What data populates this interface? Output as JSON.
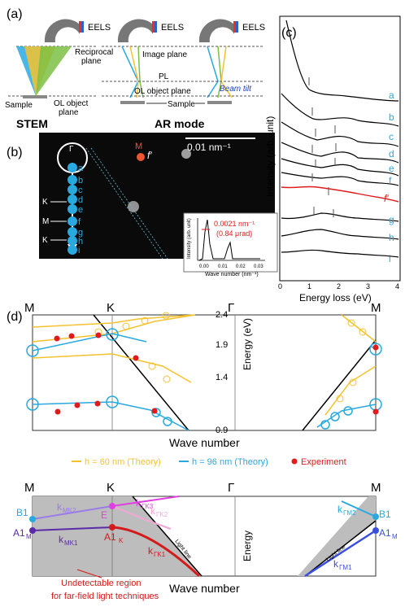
{
  "panel_a": {
    "label": "(a)",
    "eels_1": "EELS",
    "eels_2": "EELS",
    "eels_3": "EELS",
    "reciprocal_plane": "Reciprocal\nplane",
    "sample": "Sample",
    "ol_object_plane": "OL object\nplane",
    "stem": "STEM",
    "image_plane": "Image plane",
    "pl": "PL",
    "ol_object_plane_2": "OL object plane",
    "sample_2": "Sample",
    "beam_tilt": "Beam tilt",
    "ar_mode": "AR mode"
  },
  "panel_b": {
    "label": "(b)",
    "scale_bar": "0.01 nm⁻¹",
    "gamma": "Γ",
    "m_label": "M",
    "f_prime": "f′",
    "k_label_1": "K",
    "m_label_2": "M",
    "k_label_2": "K",
    "dots": [
      "a",
      "b",
      "c",
      "d",
      "e",
      "f",
      "g",
      "h",
      "i"
    ],
    "inset": {
      "ylabel": "Intensity (arb. unit)",
      "xlabel": "Wave number (nm⁻¹)",
      "ticks": [
        "0.00",
        "0.01",
        "0.02",
        "0.03"
      ],
      "annotation_1": "0.0021 nm⁻¹",
      "annotation_2": "(0.84 μrad)"
    }
  },
  "panel_c": {
    "label": "(c)",
    "ylabel": "Intensity (arb. unit)",
    "xlabel": "Energy loss (eV)",
    "x_ticks": [
      "0",
      "1",
      "2",
      "3",
      "4"
    ],
    "series": [
      "a",
      "b",
      "c",
      "d",
      "e",
      "f",
      "f′",
      "g",
      "h",
      "i"
    ]
  },
  "panel_d": {
    "label": "(d)",
    "top_labels": [
      "M",
      "K",
      "Γ",
      "M"
    ],
    "y_ticks": [
      "2.4",
      "1.9",
      "1.4",
      "0.9"
    ],
    "ylabel": "Energy (eV)",
    "xlabel": "Wave number",
    "legend_h60": "h = 60 nm (Theory)",
    "legend_h96": "h = 96 nm (Theory)",
    "legend_exp": "Experiment",
    "colors": {
      "h60": "#f5c22f",
      "h96": "#29a9e0",
      "experiment": "#e01b1b"
    }
  },
  "panel_e": {
    "top_labels": [
      "M",
      "K",
      "Γ",
      "M"
    ],
    "b1_left": "B1",
    "a1m_left": "A1",
    "a1m_left_sub": "M",
    "k_mk2": "k",
    "k_mk2_sub": "MK2",
    "k_mk1": "k",
    "k_mk1_sub": "MK1",
    "e_label": "E",
    "a1k": "A1",
    "a1k_sub": "K",
    "k_gk3": "k",
    "k_gk3_sub": "ΓK3",
    "k_gk2": "k",
    "k_gk2_sub": "ΓK2",
    "k_gk1": "k",
    "k_gk1_sub": "ΓK1",
    "light_line_1": "Light line",
    "light_line_2": "Light line",
    "energy": "Energy",
    "k_gm2": "k",
    "k_gm2_sub": "ΓM2",
    "k_gm1": "k",
    "k_gm1_sub": "ΓM1",
    "b1_right": "B1",
    "a1m_right": "A1",
    "a1m_right_sub": "M",
    "xlabel": "Wave number",
    "undetectable_1": "Undetectable region",
    "undetectable_2": "for far-field light techniques"
  }
}
